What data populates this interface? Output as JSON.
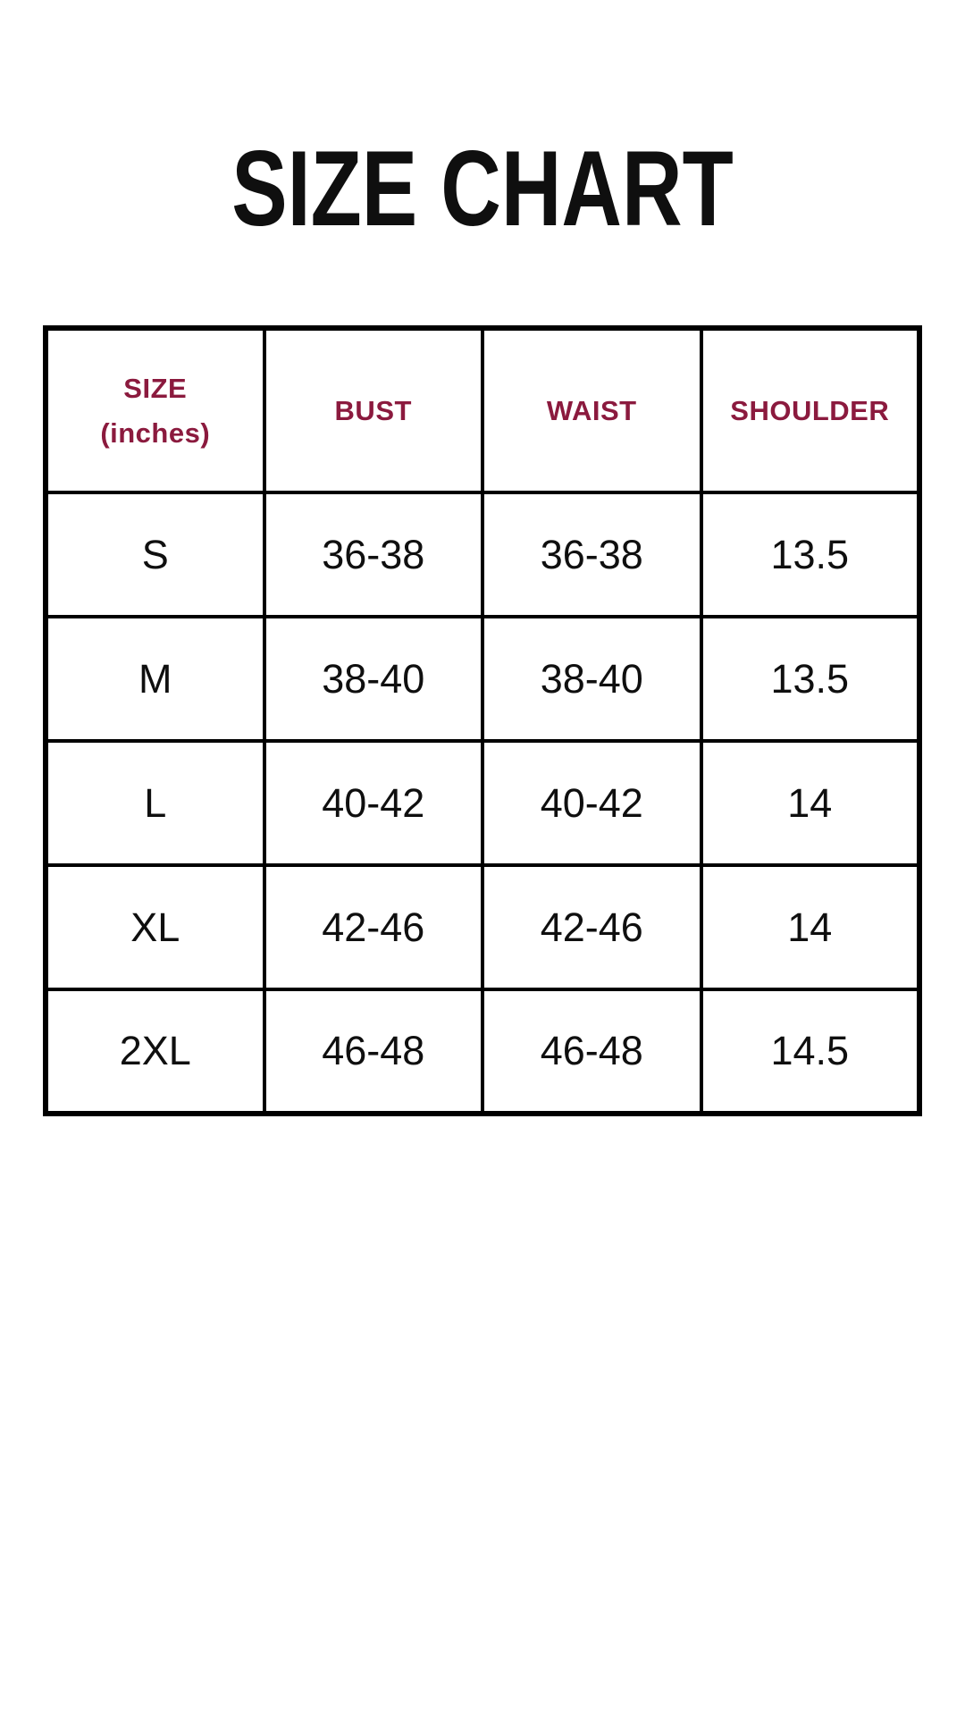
{
  "page": {
    "title": "SIZE CHART",
    "background": "#ffffff",
    "accent": "#8B1A3E",
    "text_color": "#0f0f0f",
    "border_color": "#000000"
  },
  "table": {
    "headers": [
      {
        "line1": "SIZE",
        "line2": "(inches)"
      },
      {
        "label": "BUST"
      },
      {
        "label": "WAIST"
      },
      {
        "label": "SHOULDER"
      }
    ],
    "rows": [
      {
        "size": "S",
        "bust": "36-38",
        "waist": "36-38",
        "shoulder": "13.5"
      },
      {
        "size": "M",
        "bust": "38-40",
        "waist": "38-40",
        "shoulder": "13.5"
      },
      {
        "size": "L",
        "bust": "40-42",
        "waist": "40-42",
        "shoulder": "14"
      },
      {
        "size": "XL",
        "bust": "42-46",
        "waist": "42-46",
        "shoulder": "14"
      },
      {
        "size": "2XL",
        "bust": "46-48",
        "waist": "46-48",
        "shoulder": "14.5"
      }
    ]
  }
}
